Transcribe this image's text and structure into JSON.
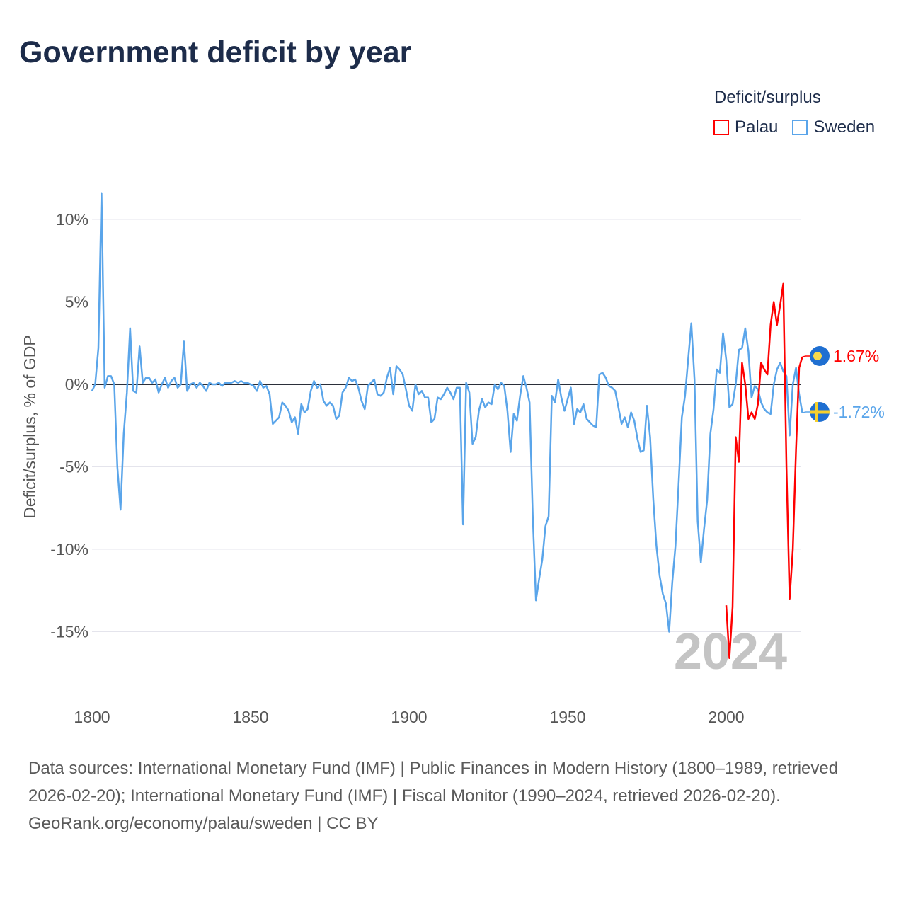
{
  "title": "Government deficit by year",
  "legend": {
    "title": "Deficit/surplus",
    "items": [
      {
        "label": "Palau",
        "color": "#ff0000"
      },
      {
        "label": "Sweden",
        "color": "#5aa5ea"
      }
    ]
  },
  "footer": {
    "sources": "Data sources: International Monetary Fund (IMF) | Public Finances in Modern History (1800–1989, retrieved 2026-02-20); International Monetary Fund (IMF) | Fiscal Monitor (1990–2024, retrieved 2026-02-20).",
    "credit": "GeoRank.org/economy/palau/sweden | CC BY"
  },
  "chart_data": {
    "type": "line",
    "title": "Government deficit by year",
    "xlabel": "",
    "ylabel": "Deficit/surplus, % of GDP",
    "xlim": [
      1800,
      2024
    ],
    "ylim": [
      -17,
      12
    ],
    "x_ticks": [
      1800,
      1850,
      1900,
      1950,
      2000
    ],
    "x_tick_labels": [
      "1800",
      "1850",
      "1900",
      "1950",
      "2000"
    ],
    "y_ticks": [
      10,
      5,
      0,
      -5,
      -10,
      -15
    ],
    "y_tick_labels": [
      "10%",
      "5%",
      "0%",
      "-5%",
      "-10%",
      "-15%"
    ],
    "year_watermark": "2024",
    "grid": true,
    "legend_position": "top-right",
    "series": [
      {
        "name": "Sweden",
        "color": "#5aa5ea",
        "start_year": 1800,
        "end_label": "-1.72%",
        "values": [
          -0.4,
          0.0,
          2.2,
          11.6,
          -0.2,
          0.5,
          0.5,
          0.0,
          -5.0,
          -7.6,
          -3.0,
          -0.5,
          3.4,
          -0.4,
          -0.5,
          2.3,
          0.1,
          0.4,
          0.4,
          0.1,
          0.3,
          -0.5,
          0.0,
          0.4,
          -0.2,
          0.2,
          0.4,
          -0.2,
          0.0,
          2.6,
          -0.4,
          0.0,
          0.1,
          -0.2,
          0.1,
          -0.1,
          -0.4,
          0.1,
          0.0,
          0.0,
          0.1,
          -0.1,
          0.1,
          0.1,
          0.1,
          0.2,
          0.1,
          0.2,
          0.1,
          0.1,
          0.0,
          -0.1,
          -0.4,
          0.2,
          -0.2,
          -0.1,
          -0.6,
          -2.4,
          -2.2,
          -2.0,
          -1.1,
          -1.3,
          -1.6,
          -2.3,
          -2.0,
          -3.0,
          -1.2,
          -1.7,
          -1.5,
          -0.4,
          0.2,
          -0.2,
          0.0,
          -1.0,
          -1.3,
          -1.1,
          -1.3,
          -2.1,
          -1.9,
          -0.5,
          -0.2,
          0.4,
          0.2,
          0.3,
          -0.2,
          -1.0,
          -1.5,
          -0.1,
          0.1,
          0.3,
          -0.6,
          -0.7,
          -0.5,
          0.4,
          1.0,
          -0.6,
          1.1,
          0.9,
          0.6,
          -0.3,
          -1.3,
          -1.6,
          0.0,
          -0.6,
          -0.4,
          -0.8,
          -0.8,
          -2.3,
          -2.1,
          -0.8,
          -0.9,
          -0.6,
          -0.2,
          -0.5,
          -0.9,
          -0.2,
          -0.2,
          -8.5,
          0.1,
          -0.5,
          -3.6,
          -3.2,
          -1.6,
          -0.9,
          -1.4,
          -1.1,
          -1.2,
          0.0,
          -0.3,
          0.1,
          -0.1,
          -1.6,
          -4.1,
          -1.8,
          -2.2,
          -0.7,
          0.5,
          -0.2,
          -1.1,
          -8.0,
          -13.1,
          -11.8,
          -10.6,
          -8.6,
          -8.0,
          -0.7,
          -1.1,
          0.3,
          -0.8,
          -1.6,
          -0.9,
          -0.2,
          -2.4,
          -1.5,
          -1.7,
          -1.2,
          -2.1,
          -2.3,
          -2.5,
          -2.6,
          0.6,
          0.7,
          0.4,
          -0.1,
          -0.2,
          -0.4,
          -1.4,
          -2.4,
          -2.0,
          -2.6,
          -1.7,
          -2.2,
          -3.3,
          -4.1,
          -4.0,
          -1.3,
          -3.2,
          -7.0,
          -9.8,
          -11.6,
          -12.7,
          -13.3,
          -15.0,
          -12.0,
          -9.8,
          -6.0,
          -2.0,
          -0.7,
          1.5,
          3.7,
          0.3,
          -8.3,
          -10.8,
          -8.8,
          -7.0,
          -3.0,
          -1.5,
          0.9,
          0.7,
          3.1,
          1.5,
          -1.4,
          -1.2,
          0.0,
          2.1,
          2.2,
          3.4,
          2.0,
          -0.8,
          -0.1,
          -0.3,
          -1.1,
          -1.5,
          -1.7,
          -1.8,
          0.0,
          0.9,
          1.3,
          0.8,
          0.5,
          -3.1,
          0.0,
          1.0,
          -0.6,
          -1.72
        ]
      },
      {
        "name": "Palau",
        "color": "#ff0000",
        "start_year": 2000,
        "end_label": "1.67%",
        "values": [
          -13.4,
          -16.6,
          -13.5,
          -3.2,
          -4.7,
          1.3,
          0.0,
          -2.1,
          -1.7,
          -2.1,
          -1.2,
          1.3,
          0.9,
          0.6,
          3.6,
          5.0,
          3.6,
          4.8,
          6.1,
          -5.0,
          -13.0,
          -10.0,
          -4.0,
          1.0,
          1.67
        ]
      }
    ]
  }
}
